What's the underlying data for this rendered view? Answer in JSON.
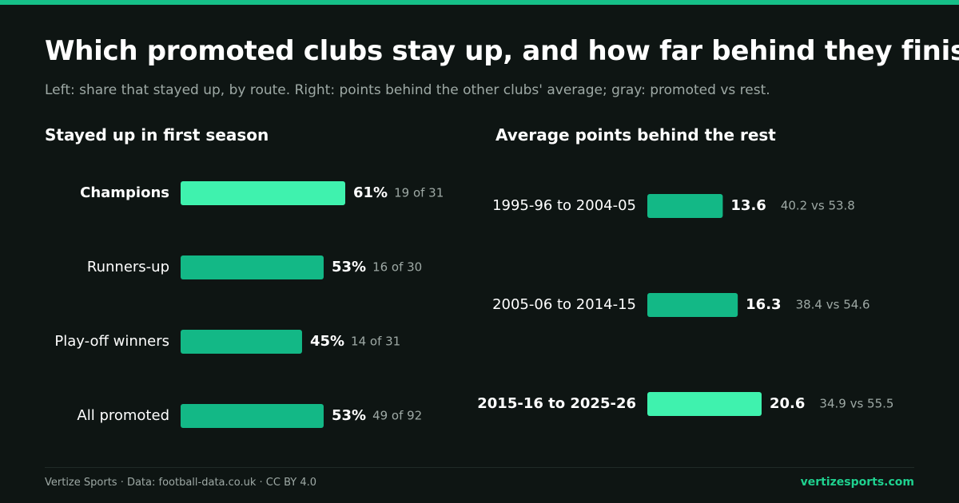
{
  "title": "Which promoted clubs stay up, and how far behind they finish",
  "subtitle": "Left: share that stayed up, by route. Right: points behind the other clubs' average; gray: promoted vs rest.",
  "colors": {
    "background": "#0e1513",
    "bar": "#13b886",
    "bar_highlight": "#3ff2ae",
    "text_muted": "#9ea9a5",
    "brand": "#1fd18f"
  },
  "chart_data": [
    {
      "type": "bar",
      "orientation": "horizontal",
      "title": "Stayed up in first season",
      "unit": "%",
      "categories": [
        "Champions",
        "Runners-up",
        "Play-off winners",
        "All promoted"
      ],
      "values": [
        61,
        53,
        45,
        53
      ],
      "value_labels": [
        "61%",
        "53%",
        "45%",
        "53%"
      ],
      "annotations": [
        "19 of 31",
        "16 of 30",
        "14 of 31",
        "49 of 92"
      ],
      "highlight": "Champions"
    },
    {
      "type": "bar",
      "orientation": "horizontal",
      "title": "Average points behind the rest",
      "categories": [
        "1995-96 to 2004-05",
        "2005-06 to 2014-15",
        "2015-16 to 2025-26"
      ],
      "values": [
        13.6,
        16.3,
        20.6
      ],
      "value_labels": [
        "13.6",
        "16.3",
        "20.6"
      ],
      "annotations": [
        "40.2 vs 53.8",
        "38.4 vs 54.6",
        "34.9 vs 55.5"
      ],
      "highlight": "2015-16 to 2025-26"
    }
  ],
  "footer": {
    "source": "Vertize Sports · Data: football-data.co.uk · CC BY 4.0",
    "brand": "vertizesports.com"
  }
}
